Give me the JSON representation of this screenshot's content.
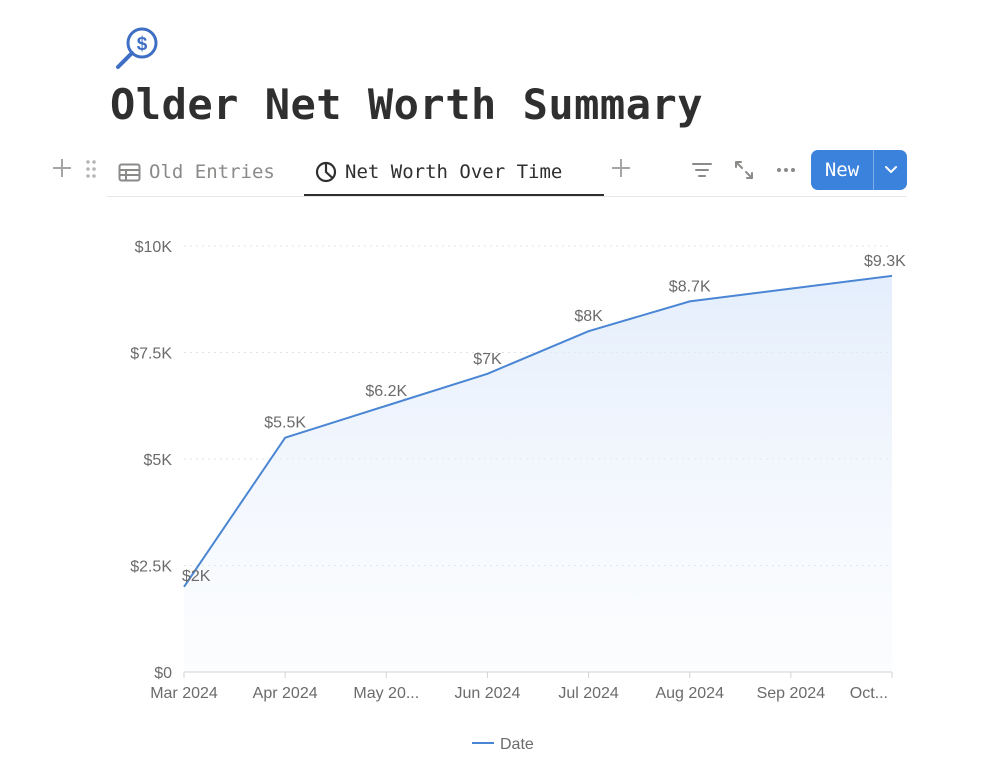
{
  "page": {
    "icon": "magnifier-dollar-icon",
    "title": "Older Net Worth Summary"
  },
  "toolbar": {
    "tabs": [
      {
        "label": "Old Entries",
        "icon": "table-icon",
        "active": false
      },
      {
        "label": "Net Worth Over Time",
        "icon": "chart-icon",
        "active": true
      }
    ],
    "new_label": "New",
    "icons": [
      "plus-icon",
      "drag-handle-icon",
      "filter-icon",
      "expand-icon",
      "more-icon",
      "chevron-down-icon"
    ]
  },
  "colors": {
    "accent": "#3b82dc",
    "line": "#4a86d4",
    "text": "#2f2f2f",
    "muted": "#8a8a88"
  },
  "chart_data": {
    "type": "area",
    "categories": [
      "Mar 2024",
      "Apr 2024",
      "May 20...",
      "Jun 2024",
      "Jul 2024",
      "Aug 2024",
      "Sep 2024",
      "Oct..."
    ],
    "values": [
      2000,
      5500,
      6250,
      7000,
      8000,
      8700,
      9000,
      9300
    ],
    "data_labels": [
      "$2K",
      "$5.5K",
      "$6.2K",
      "$7K",
      "$8K",
      "$8.7K",
      "",
      "$9.3K"
    ],
    "y_ticks": [
      {
        "value": 0,
        "label": "$0"
      },
      {
        "value": 2500,
        "label": "$2.5K"
      },
      {
        "value": 5000,
        "label": "$5K"
      },
      {
        "value": 7500,
        "label": "$7.5K"
      },
      {
        "value": 10000,
        "label": "$10K"
      }
    ],
    "ylim": [
      0,
      10000
    ],
    "grid": true,
    "legend": {
      "label": "Date",
      "position": "bottom"
    }
  }
}
